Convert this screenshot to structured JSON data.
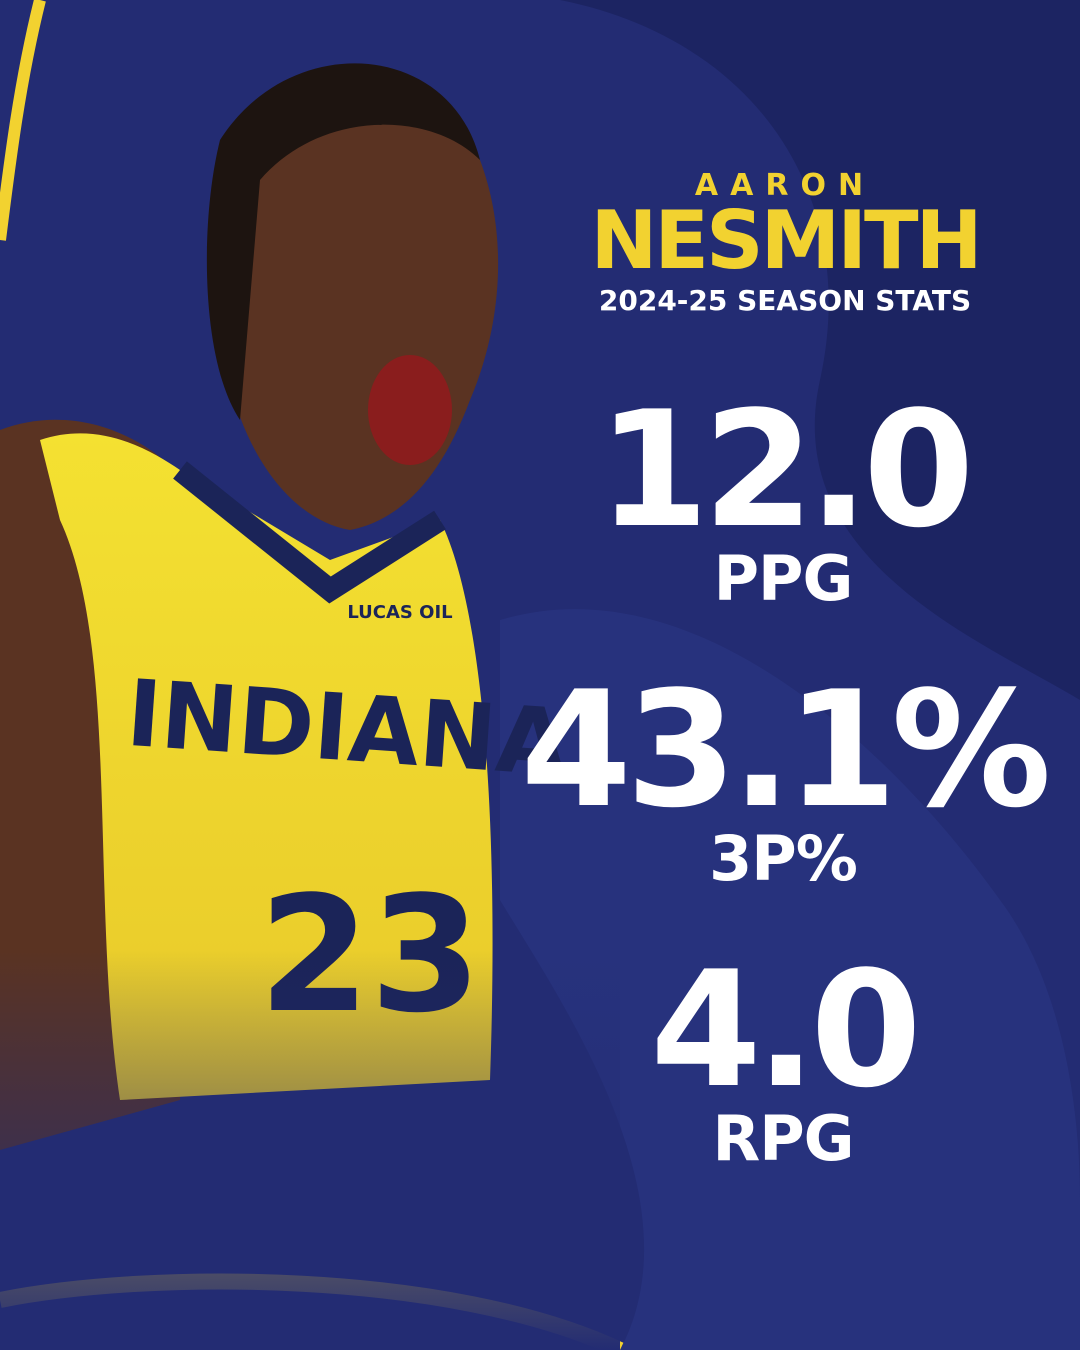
{
  "header": {
    "first_name": "AARON",
    "last_name": "NESMITH",
    "subtitle": "2024-25 SEASON STATS"
  },
  "stats": [
    {
      "value": "12.0",
      "label": "PPG"
    },
    {
      "value": "43.1%",
      "label": "3P%"
    },
    {
      "value": "4.0",
      "label": "RPG"
    }
  ],
  "photo": {
    "jersey_team": "INDIANA",
    "jersey_number": "23",
    "sponsor": "LUCAS OIL"
  }
}
